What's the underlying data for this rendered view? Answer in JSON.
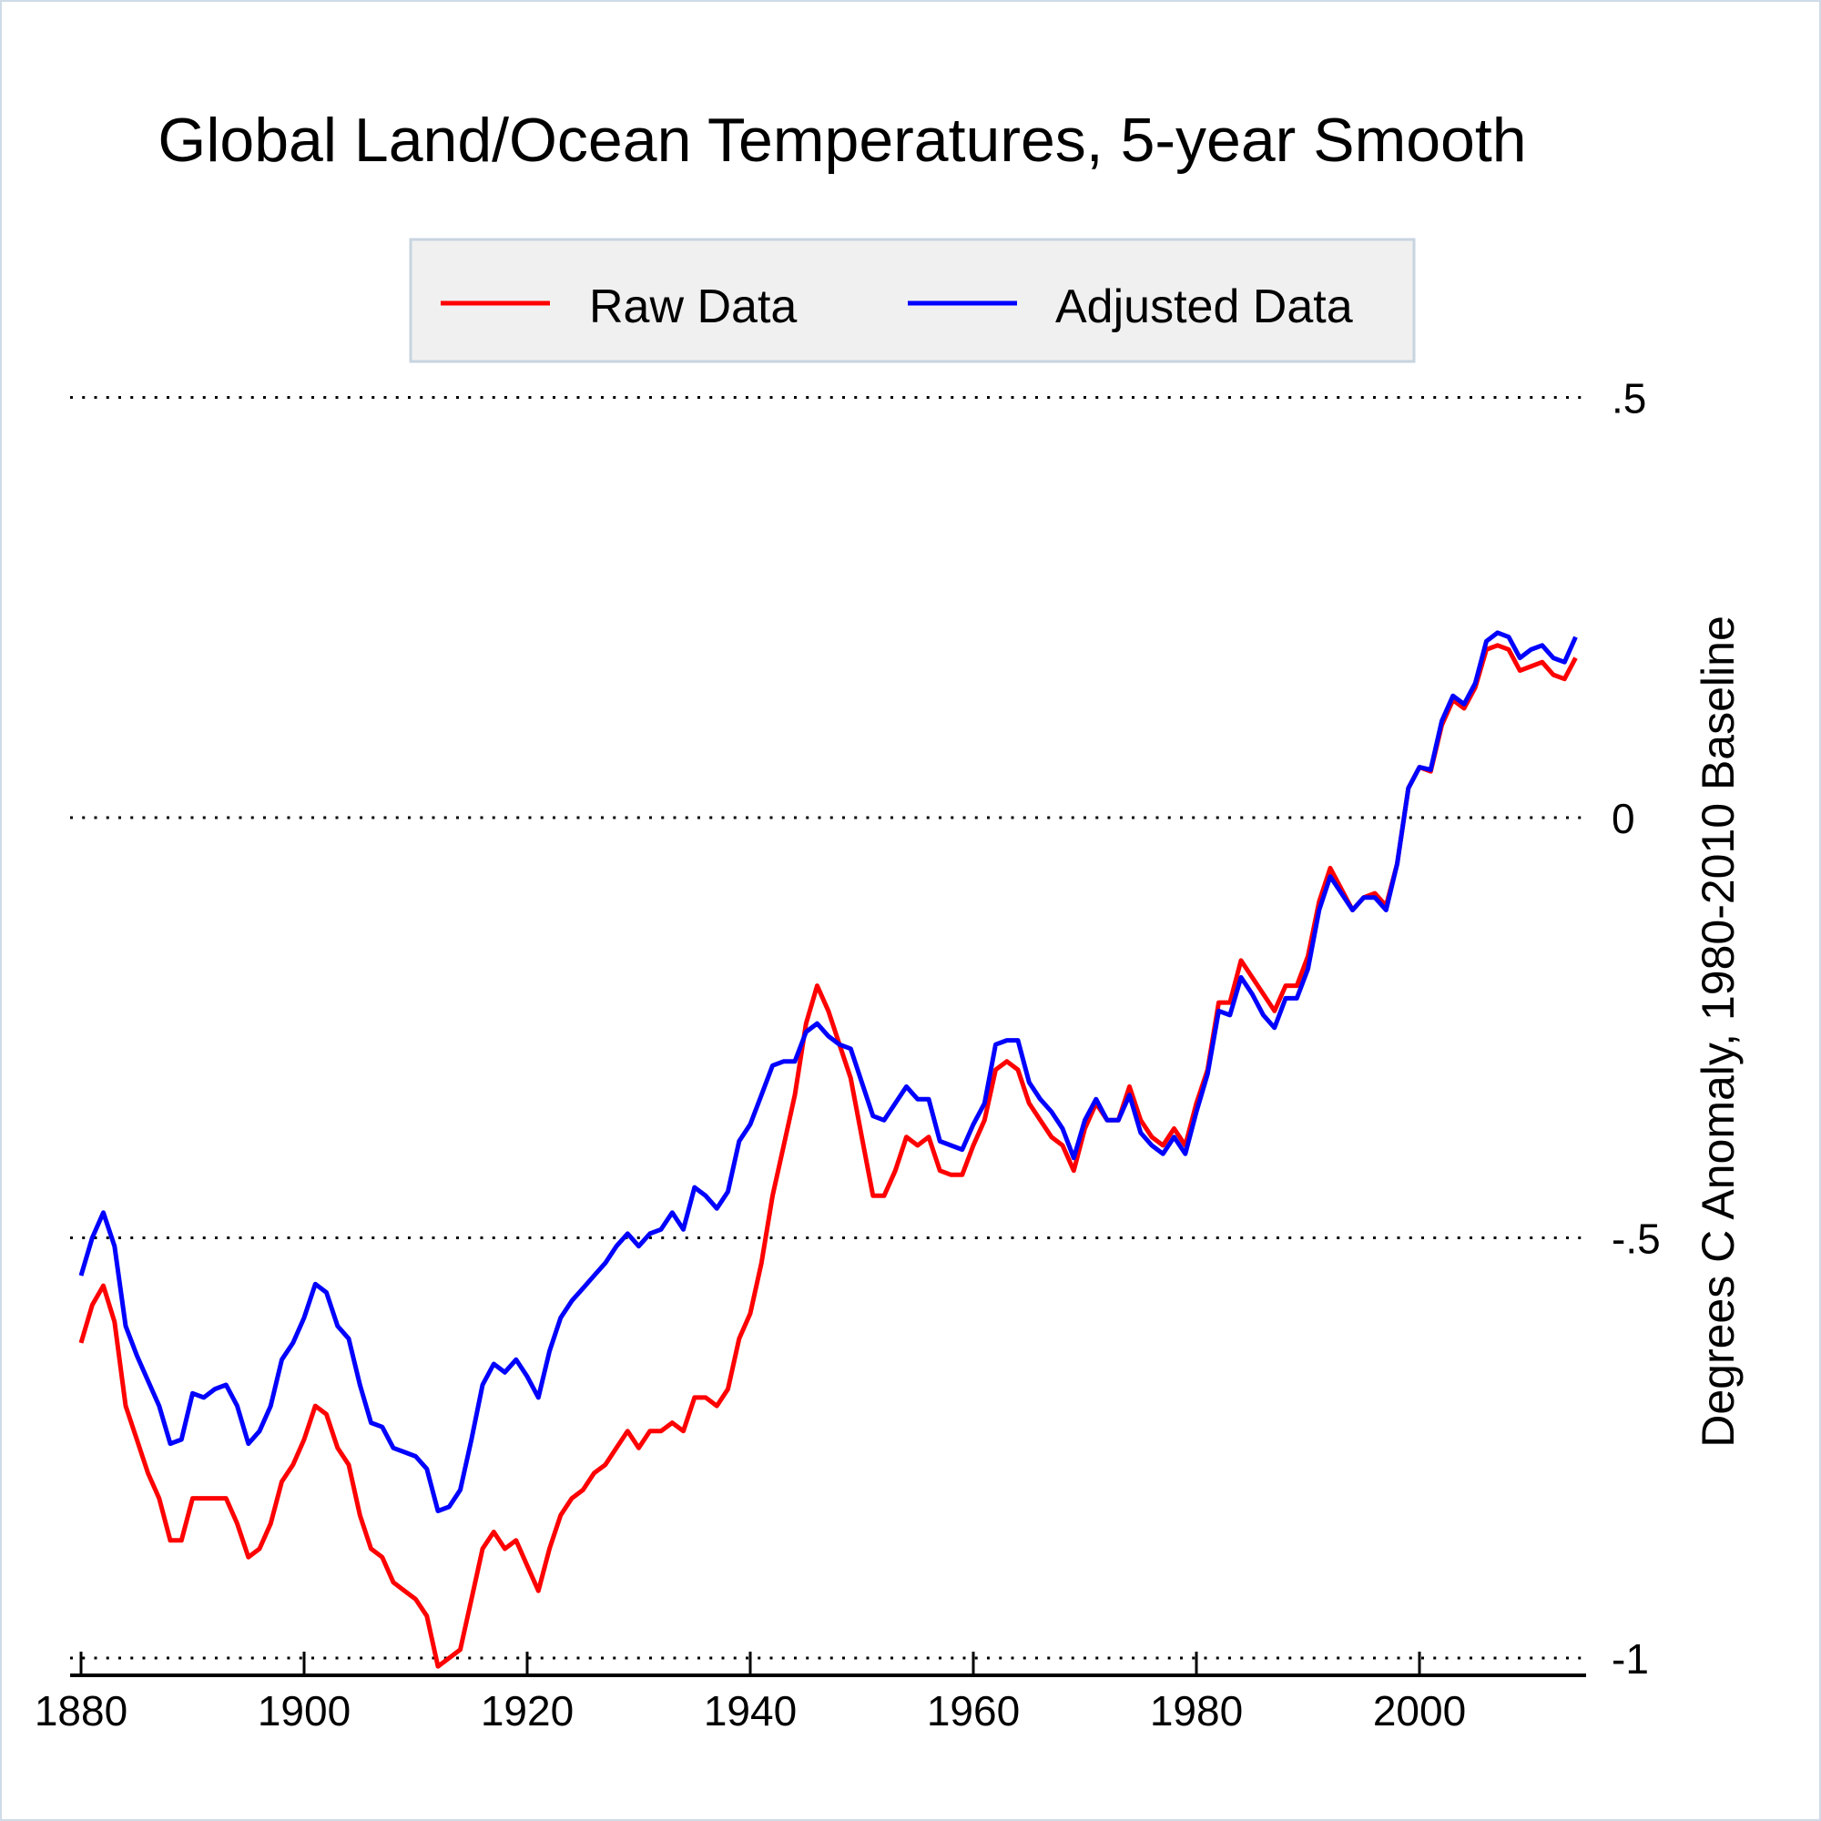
{
  "chart_data": {
    "type": "line",
    "title": "Global Land/Ocean Temperatures, 5-year Smooth",
    "xlabel": "",
    "ylabel": "Degrees C Anomaly, 1980-2010 Baseline",
    "xlim": [
      1880,
      2014
    ],
    "ylim": [
      -1,
      0.5
    ],
    "x_ticks": [
      1880,
      1900,
      1920,
      1940,
      1960,
      1980,
      2000
    ],
    "x_tick_labels": [
      "1880",
      "1900",
      "1920",
      "1940",
      "1960",
      "1980",
      "2000"
    ],
    "y_ticks": [
      0.5,
      0,
      -0.5,
      -1
    ],
    "y_tick_labels": [
      ".5",
      "0",
      "-.5",
      "-1"
    ],
    "y_axis_side": "right",
    "grid": "horizontal dotted",
    "legend_placement": "top-center",
    "x_start": 1880,
    "series": [
      {
        "name": "Raw Data",
        "color": "#ff0000",
        "values": [
          -0.625,
          -0.58,
          -0.557,
          -0.6,
          -0.7,
          -0.74,
          -0.78,
          -0.81,
          -0.86,
          -0.86,
          -0.81,
          -0.81,
          -0.81,
          -0.81,
          -0.84,
          -0.88,
          -0.87,
          -0.84,
          -0.79,
          -0.77,
          -0.74,
          -0.7,
          -0.71,
          -0.75,
          -0.77,
          -0.83,
          -0.87,
          -0.88,
          -0.91,
          -0.92,
          -0.93,
          -0.95,
          -1.01,
          -1.0,
          -0.99,
          -0.93,
          -0.87,
          -0.85,
          -0.87,
          -0.86,
          -0.89,
          -0.92,
          -0.87,
          -0.83,
          -0.81,
          -0.8,
          -0.78,
          -0.77,
          -0.75,
          -0.73,
          -0.75,
          -0.73,
          -0.73,
          -0.72,
          -0.73,
          -0.69,
          -0.69,
          -0.7,
          -0.68,
          -0.62,
          -0.59,
          -0.53,
          -0.45,
          -0.39,
          -0.33,
          -0.245,
          -0.2,
          -0.23,
          -0.27,
          -0.31,
          -0.38,
          -0.45,
          -0.45,
          -0.42,
          -0.38,
          -0.39,
          -0.38,
          -0.42,
          -0.425,
          -0.425,
          -0.39,
          -0.36,
          -0.3,
          -0.29,
          -0.3,
          -0.34,
          -0.36,
          -0.38,
          -0.39,
          -0.42,
          -0.37,
          -0.34,
          -0.36,
          -0.36,
          -0.32,
          -0.36,
          -0.38,
          -0.39,
          -0.37,
          -0.39,
          -0.34,
          -0.3,
          -0.22,
          -0.22,
          -0.17,
          -0.19,
          -0.21,
          -0.23,
          -0.2,
          -0.2,
          -0.165,
          -0.1,
          -0.06,
          -0.085,
          -0.11,
          -0.095,
          -0.09,
          -0.105,
          -0.055,
          0.035,
          0.06,
          0.055,
          0.11,
          0.14,
          0.13,
          0.155,
          0.2,
          0.205,
          0.2,
          0.175,
          0.18,
          0.185,
          0.17,
          0.165,
          0.19
        ]
      },
      {
        "name": "Adjusted Data",
        "color": "#0000ff",
        "values": [
          -0.545,
          -0.5,
          -0.47,
          -0.51,
          -0.605,
          -0.64,
          -0.67,
          -0.7,
          -0.745,
          -0.74,
          -0.685,
          -0.69,
          -0.68,
          -0.675,
          -0.7,
          -0.745,
          -0.73,
          -0.7,
          -0.645,
          -0.625,
          -0.595,
          -0.555,
          -0.565,
          -0.605,
          -0.62,
          -0.675,
          -0.72,
          -0.725,
          -0.75,
          -0.755,
          -0.76,
          -0.775,
          -0.825,
          -0.82,
          -0.8,
          -0.74,
          -0.675,
          -0.65,
          -0.66,
          -0.645,
          -0.665,
          -0.69,
          -0.635,
          -0.595,
          -0.575,
          -0.56,
          -0.545,
          -0.53,
          -0.51,
          -0.495,
          -0.51,
          -0.495,
          -0.49,
          -0.47,
          -0.49,
          -0.44,
          -0.45,
          -0.465,
          -0.445,
          -0.385,
          -0.365,
          -0.33,
          -0.295,
          -0.29,
          -0.29,
          -0.255,
          -0.245,
          -0.26,
          -0.27,
          -0.275,
          -0.315,
          -0.355,
          -0.36,
          -0.34,
          -0.32,
          -0.335,
          -0.335,
          -0.385,
          -0.39,
          -0.395,
          -0.365,
          -0.34,
          -0.27,
          -0.265,
          -0.265,
          -0.315,
          -0.335,
          -0.35,
          -0.37,
          -0.405,
          -0.36,
          -0.335,
          -0.36,
          -0.36,
          -0.33,
          -0.375,
          -0.39,
          -0.4,
          -0.38,
          -0.4,
          -0.35,
          -0.305,
          -0.23,
          -0.235,
          -0.19,
          -0.21,
          -0.235,
          -0.25,
          -0.215,
          -0.215,
          -0.18,
          -0.11,
          -0.07,
          -0.09,
          -0.11,
          -0.095,
          -0.095,
          -0.11,
          -0.055,
          0.035,
          0.06,
          0.057,
          0.115,
          0.145,
          0.135,
          0.16,
          0.21,
          0.22,
          0.215,
          0.19,
          0.2,
          0.205,
          0.19,
          0.185,
          0.215
        ]
      }
    ]
  }
}
